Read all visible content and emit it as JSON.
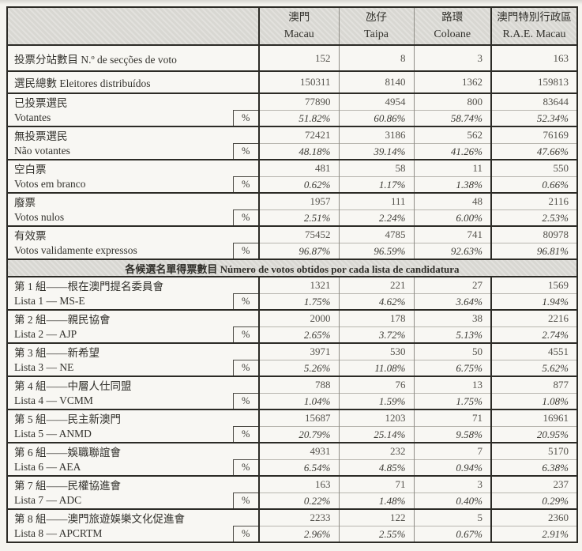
{
  "table": {
    "percent_symbol": "%",
    "columns": [
      {
        "zh": "澳門",
        "latin": "Macau"
      },
      {
        "zh": "氹仔",
        "latin": "Taipa"
      },
      {
        "zh": "路環",
        "latin": "Coloane"
      },
      {
        "zh": "澳門特別行政區",
        "latin": "R.A.E. Macau"
      }
    ],
    "single_rows": [
      {
        "label": "投票分站數目 N.º de secções de voto",
        "values": [
          "152",
          "8",
          "3",
          "163"
        ]
      },
      {
        "label": "選民總數 Eleitores distribuídos",
        "values": [
          "150311",
          "8140",
          "1362",
          "159813"
        ]
      }
    ],
    "summary_pairs": [
      {
        "zh": "已投票選民",
        "latin": "Votantes",
        "counts": [
          "77890",
          "4954",
          "800",
          "83644"
        ],
        "percents": [
          "51.82%",
          "60.86%",
          "58.74%",
          "52.34%"
        ]
      },
      {
        "zh": "無投票選民",
        "latin": "Não votantes",
        "counts": [
          "72421",
          "3186",
          "562",
          "76169"
        ],
        "percents": [
          "48.18%",
          "39.14%",
          "41.26%",
          "47.66%"
        ]
      },
      {
        "zh": "空白票",
        "latin": "Votos em branco",
        "counts": [
          "481",
          "58",
          "11",
          "550"
        ],
        "percents": [
          "0.62%",
          "1.17%",
          "1.38%",
          "0.66%"
        ]
      },
      {
        "zh": "廢票",
        "latin": "Votos nulos",
        "counts": [
          "1957",
          "111",
          "48",
          "2116"
        ],
        "percents": [
          "2.51%",
          "2.24%",
          "6.00%",
          "2.53%"
        ]
      },
      {
        "zh": "有效票",
        "latin": "Votos validamente expressos",
        "counts": [
          "75452",
          "4785",
          "741",
          "80978"
        ],
        "percents": [
          "96.87%",
          "96.59%",
          "92.63%",
          "96.81%"
        ]
      }
    ],
    "section_header": "各候選名單得票數目  Número de votos obtidos por cada lista de candidatura",
    "list_pairs": [
      {
        "zh": "第 1 組——根在澳門提名委員會",
        "latin": "Lista 1 — MS-E",
        "counts": [
          "1321",
          "221",
          "27",
          "1569"
        ],
        "percents": [
          "1.75%",
          "4.62%",
          "3.64%",
          "1.94%"
        ]
      },
      {
        "zh": "第 2 組——親民協會",
        "latin": "Lista 2 — AJP",
        "counts": [
          "2000",
          "178",
          "38",
          "2216"
        ],
        "percents": [
          "2.65%",
          "3.72%",
          "5.13%",
          "2.74%"
        ]
      },
      {
        "zh": "第 3 組——新希望",
        "latin": "Lista 3 — NE",
        "counts": [
          "3971",
          "530",
          "50",
          "4551"
        ],
        "percents": [
          "5.26%",
          "11.08%",
          "6.75%",
          "5.62%"
        ]
      },
      {
        "zh": "第 4 組——中層人仕同盟",
        "latin": "Lista 4 — VCMM",
        "counts": [
          "788",
          "76",
          "13",
          "877"
        ],
        "percents": [
          "1.04%",
          "1.59%",
          "1.75%",
          "1.08%"
        ]
      },
      {
        "zh": "第 5 組——民主新澳門",
        "latin": "Lista 5 — ANMD",
        "counts": [
          "15687",
          "1203",
          "71",
          "16961"
        ],
        "percents": [
          "20.79%",
          "25.14%",
          "9.58%",
          "20.95%"
        ]
      },
      {
        "zh": "第 6 組——娛職聯誼會",
        "latin": "Lista 6 — AEA",
        "counts": [
          "4931",
          "232",
          "7",
          "5170"
        ],
        "percents": [
          "6.54%",
          "4.85%",
          "0.94%",
          "6.38%"
        ]
      },
      {
        "zh": "第 7 組——民權協進會",
        "latin": "Lista 7 — ADC",
        "counts": [
          "163",
          "71",
          "3",
          "237"
        ],
        "percents": [
          "0.22%",
          "1.48%",
          "0.40%",
          "0.29%"
        ]
      },
      {
        "zh": "第 8 組——澳門旅遊娛樂文化促進會",
        "latin": "Lista 8 — APCRTM",
        "counts": [
          "2233",
          "122",
          "5",
          "2360"
        ],
        "percents": [
          "2.96%",
          "2.55%",
          "0.67%",
          "2.91%"
        ]
      }
    ]
  }
}
